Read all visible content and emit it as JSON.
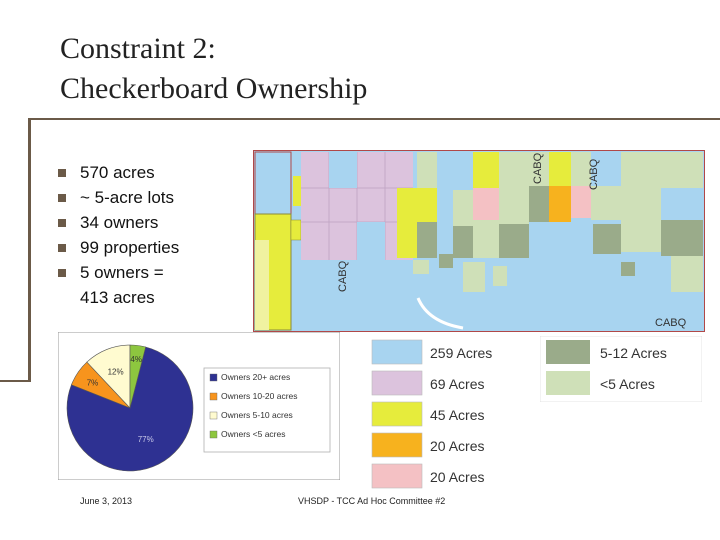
{
  "slide": {
    "title_line1": "Constraint 2:",
    "title_line2": "Checkerboard Ownership",
    "bullets": [
      "570 acres",
      "~ 5-acre lots",
      "34 owners",
      "99 properties",
      "5 owners =",
      "413 acres"
    ]
  },
  "map": {
    "labels": [
      "CABQ",
      "CABQ",
      "CABQ",
      "CABQ"
    ]
  },
  "chart_data": {
    "type": "pie",
    "categories": [
      "Owners 20+ acres",
      "Owners 10-20 acres",
      "Owners 5-10 acres",
      "Owners <5 acres"
    ],
    "values": [
      77,
      7,
      12,
      4
    ],
    "data_labels": [
      "77%",
      "7%",
      "12%",
      "4%"
    ],
    "colors": [
      "#2e3192",
      "#f7941d",
      "#fffbd0",
      "#8dc63f"
    ],
    "legend_position": "right"
  },
  "acre_legend": [
    {
      "label": "259 Acres",
      "color": "#a8d4f0"
    },
    {
      "label": "69 Acres",
      "color": "#dcc3dd"
    },
    {
      "label": "45 Acres",
      "color": "#e6ec3c"
    },
    {
      "label": "20 Acres",
      "color": "#f7b21e"
    },
    {
      "label": "20 Acres",
      "color": "#f4c1c4"
    }
  ],
  "small_legend": [
    {
      "label": "5-12 Acres",
      "color": "#9aab8a"
    },
    {
      "label": "<5 Acres",
      "color": "#cfe0b8"
    }
  ],
  "footer": {
    "date": "June 3, 2013",
    "org": "VHSDP - TCC Ad Hoc Committee #2"
  }
}
